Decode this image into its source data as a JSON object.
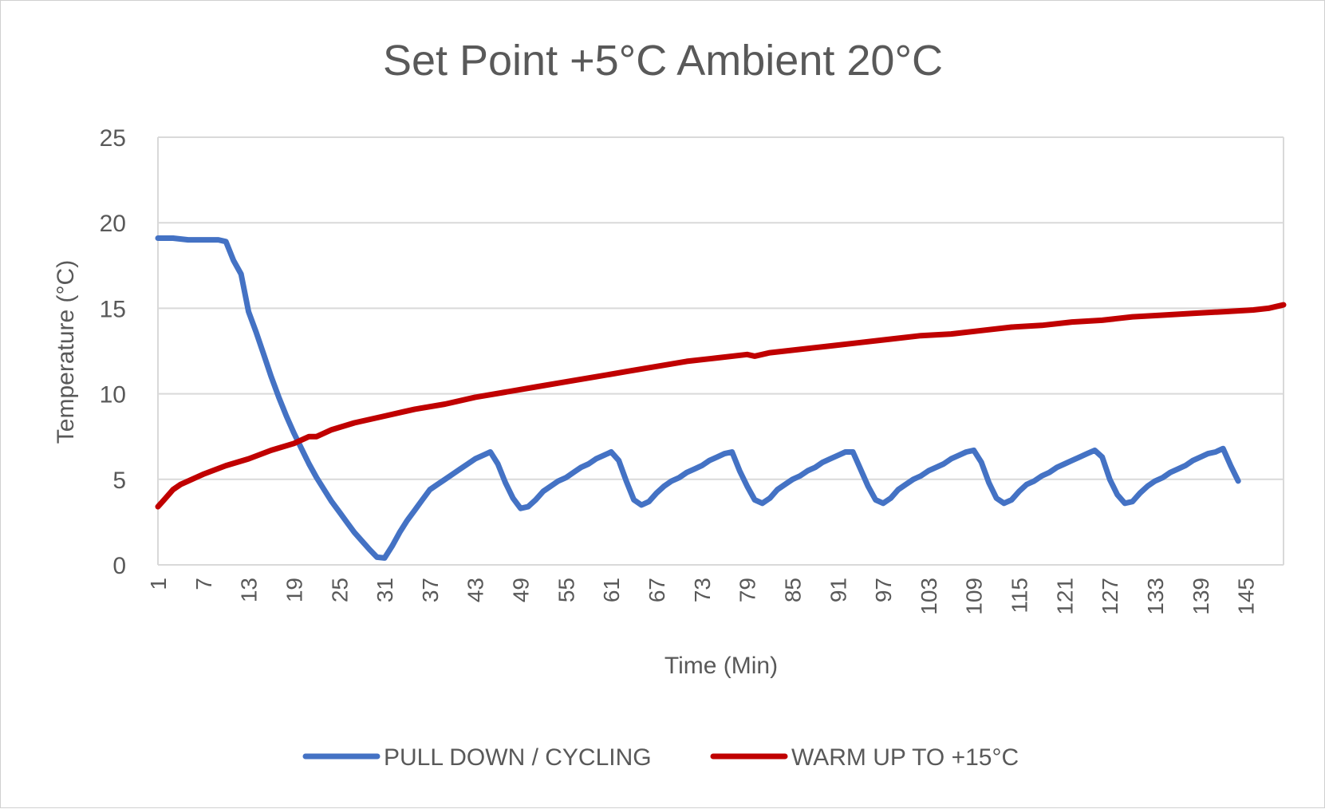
{
  "chart_data": {
    "type": "line",
    "title": "Set Point +5°C Ambient 20°C",
    "xlabel": "Time (Min)",
    "ylabel": "Temperature (°C)",
    "ylim": [
      0,
      25
    ],
    "yticks": [
      "0",
      "5",
      "10",
      "15",
      "20",
      "25"
    ],
    "xrange": [
      1,
      150
    ],
    "xticks": [
      "1",
      "7",
      "13",
      "19",
      "25",
      "31",
      "37",
      "43",
      "49",
      "55",
      "61",
      "67",
      "73",
      "79",
      "85",
      "91",
      "97",
      "103",
      "109",
      "115",
      "121",
      "127",
      "133",
      "139",
      "145"
    ],
    "grid": "horizontal",
    "legend_position": "bottom",
    "series": [
      {
        "name": "PULL DOWN / CYCLING",
        "color": "#4472C4",
        "points": [
          [
            1,
            19.1
          ],
          [
            3,
            19.1
          ],
          [
            5,
            19.0
          ],
          [
            7,
            19.0
          ],
          [
            9,
            19.0
          ],
          [
            10,
            18.9
          ],
          [
            11,
            17.8
          ],
          [
            12,
            17.0
          ],
          [
            13,
            14.8
          ],
          [
            14,
            13.6
          ],
          [
            15,
            12.3
          ],
          [
            16,
            11.0
          ],
          [
            17,
            9.8
          ],
          [
            18,
            8.7
          ],
          [
            19,
            7.7
          ],
          [
            20,
            6.8
          ],
          [
            21,
            5.9
          ],
          [
            22,
            5.1
          ],
          [
            23,
            4.4
          ],
          [
            24,
            3.7
          ],
          [
            25,
            3.1
          ],
          [
            26,
            2.5
          ],
          [
            27,
            1.9
          ],
          [
            28,
            1.4
          ],
          [
            29,
            0.9
          ],
          [
            30,
            0.45
          ],
          [
            31,
            0.4
          ],
          [
            32,
            1.1
          ],
          [
            33,
            1.9
          ],
          [
            34,
            2.6
          ],
          [
            35,
            3.2
          ],
          [
            36,
            3.8
          ],
          [
            37,
            4.4
          ],
          [
            38,
            4.7
          ],
          [
            39,
            5.0
          ],
          [
            40,
            5.3
          ],
          [
            41,
            5.6
          ],
          [
            42,
            5.9
          ],
          [
            43,
            6.2
          ],
          [
            44,
            6.4
          ],
          [
            45,
            6.6
          ],
          [
            46,
            5.9
          ],
          [
            47,
            4.8
          ],
          [
            48,
            3.9
          ],
          [
            49,
            3.3
          ],
          [
            50,
            3.4
          ],
          [
            51,
            3.8
          ],
          [
            52,
            4.3
          ],
          [
            53,
            4.6
          ],
          [
            54,
            4.9
          ],
          [
            55,
            5.1
          ],
          [
            56,
            5.4
          ],
          [
            57,
            5.7
          ],
          [
            58,
            5.9
          ],
          [
            59,
            6.2
          ],
          [
            60,
            6.4
          ],
          [
            61,
            6.6
          ],
          [
            62,
            6.1
          ],
          [
            63,
            4.9
          ],
          [
            64,
            3.8
          ],
          [
            65,
            3.5
          ],
          [
            66,
            3.7
          ],
          [
            67,
            4.2
          ],
          [
            68,
            4.6
          ],
          [
            69,
            4.9
          ],
          [
            70,
            5.1
          ],
          [
            71,
            5.4
          ],
          [
            72,
            5.6
          ],
          [
            73,
            5.8
          ],
          [
            74,
            6.1
          ],
          [
            75,
            6.3
          ],
          [
            76,
            6.5
          ],
          [
            77,
            6.6
          ],
          [
            78,
            5.5
          ],
          [
            79,
            4.6
          ],
          [
            80,
            3.8
          ],
          [
            81,
            3.6
          ],
          [
            82,
            3.9
          ],
          [
            83,
            4.4
          ],
          [
            84,
            4.7
          ],
          [
            85,
            5.0
          ],
          [
            86,
            5.2
          ],
          [
            87,
            5.5
          ],
          [
            88,
            5.7
          ],
          [
            89,
            6.0
          ],
          [
            90,
            6.2
          ],
          [
            91,
            6.4
          ],
          [
            92,
            6.6
          ],
          [
            93,
            6.6
          ],
          [
            94,
            5.6
          ],
          [
            95,
            4.6
          ],
          [
            96,
            3.8
          ],
          [
            97,
            3.6
          ],
          [
            98,
            3.9
          ],
          [
            99,
            4.4
          ],
          [
            100,
            4.7
          ],
          [
            101,
            5.0
          ],
          [
            102,
            5.2
          ],
          [
            103,
            5.5
          ],
          [
            104,
            5.7
          ],
          [
            105,
            5.9
          ],
          [
            106,
            6.2
          ],
          [
            107,
            6.4
          ],
          [
            108,
            6.6
          ],
          [
            109,
            6.7
          ],
          [
            110,
            6.0
          ],
          [
            111,
            4.8
          ],
          [
            112,
            3.9
          ],
          [
            113,
            3.6
          ],
          [
            114,
            3.8
          ],
          [
            115,
            4.3
          ],
          [
            116,
            4.7
          ],
          [
            117,
            4.9
          ],
          [
            118,
            5.2
          ],
          [
            119,
            5.4
          ],
          [
            120,
            5.7
          ],
          [
            121,
            5.9
          ],
          [
            122,
            6.1
          ],
          [
            123,
            6.3
          ],
          [
            124,
            6.5
          ],
          [
            125,
            6.7
          ],
          [
            126,
            6.3
          ],
          [
            127,
            5.0
          ],
          [
            128,
            4.1
          ],
          [
            129,
            3.6
          ],
          [
            130,
            3.7
          ],
          [
            131,
            4.2
          ],
          [
            132,
            4.6
          ],
          [
            133,
            4.9
          ],
          [
            134,
            5.1
          ],
          [
            135,
            5.4
          ],
          [
            136,
            5.6
          ],
          [
            137,
            5.8
          ],
          [
            138,
            6.1
          ],
          [
            139,
            6.3
          ],
          [
            140,
            6.5
          ],
          [
            141,
            6.6
          ],
          [
            142,
            6.8
          ],
          [
            143,
            5.8
          ],
          [
            144,
            4.9
          ]
        ]
      },
      {
        "name": "WARM UP TO +15°C",
        "color": "#C00000",
        "points": [
          [
            1,
            3.4
          ],
          [
            2,
            3.9
          ],
          [
            3,
            4.4
          ],
          [
            4,
            4.7
          ],
          [
            5,
            4.9
          ],
          [
            7,
            5.3
          ],
          [
            10,
            5.8
          ],
          [
            13,
            6.2
          ],
          [
            16,
            6.7
          ],
          [
            19,
            7.1
          ],
          [
            21,
            7.5
          ],
          [
            22,
            7.5
          ],
          [
            24,
            7.9
          ],
          [
            27,
            8.3
          ],
          [
            31,
            8.7
          ],
          [
            35,
            9.1
          ],
          [
            39,
            9.4
          ],
          [
            43,
            9.8
          ],
          [
            47,
            10.1
          ],
          [
            51,
            10.4
          ],
          [
            55,
            10.7
          ],
          [
            59,
            11.0
          ],
          [
            63,
            11.3
          ],
          [
            67,
            11.6
          ],
          [
            71,
            11.9
          ],
          [
            75,
            12.1
          ],
          [
            79,
            12.3
          ],
          [
            80,
            12.2
          ],
          [
            82,
            12.4
          ],
          [
            86,
            12.6
          ],
          [
            90,
            12.8
          ],
          [
            94,
            13.0
          ],
          [
            98,
            13.2
          ],
          [
            102,
            13.4
          ],
          [
            106,
            13.5
          ],
          [
            110,
            13.7
          ],
          [
            114,
            13.9
          ],
          [
            118,
            14.0
          ],
          [
            122,
            14.2
          ],
          [
            126,
            14.3
          ],
          [
            130,
            14.5
          ],
          [
            134,
            14.6
          ],
          [
            138,
            14.7
          ],
          [
            142,
            14.8
          ],
          [
            146,
            14.9
          ],
          [
            148,
            15.0
          ],
          [
            150,
            15.2
          ]
        ]
      }
    ]
  }
}
